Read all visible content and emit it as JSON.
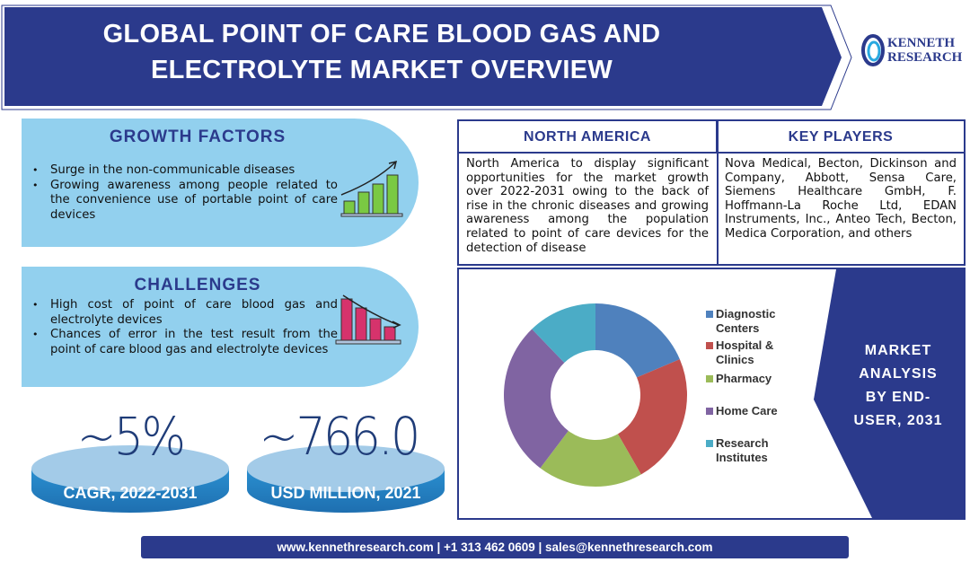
{
  "header": {
    "title_line1": "GLOBAL POINT OF CARE BLOOD GAS AND",
    "title_line2": "ELECTROLYTE MARKET OVERVIEW",
    "logo_line1": "KENNETH",
    "logo_line2": "RESEARCH"
  },
  "growth": {
    "title": "GROWTH FACTORS",
    "items": [
      "Surge in the non-communicable diseases",
      "Growing awareness among people related to the convenience use of portable point of care devices"
    ]
  },
  "challenges": {
    "title": "CHALLENGES",
    "items": [
      "High cost of point of care blood gas and electrolyte devices",
      "Chances of error in the test result from the point of care blood gas and electrolyte devices"
    ]
  },
  "stats": [
    {
      "value": "~5%",
      "label": "CAGR, 2022-2031"
    },
    {
      "value": "~766.0",
      "label": "USD MILLION, 2021"
    }
  ],
  "north_america": {
    "title": "NORTH AMERICA",
    "text": "North America to display significant opportunities for the market growth over 2022-2031 owing to the back of rise in the chronic diseases and growing awareness among the population related to point of care devices for the detection of disease"
  },
  "key_players": {
    "title": "KEY PLAYERS",
    "text": "Nova Medical, Becton, Dickinson and Company, Abbott, Sensa Care, Siemens Healthcare GmbH, F. Hoffmann-La Roche Ltd, EDAN Instruments, Inc., Anteo Tech, Becton, Medica Corporation, and others"
  },
  "market_analysis": {
    "line1": "MARKET",
    "line2": "ANALYSIS",
    "line3": "BY END-",
    "line4": "USER, 2031"
  },
  "chart_data": {
    "type": "pie",
    "donut": true,
    "categories": [
      "Diagnostic Centers",
      "Hospital & Clinics",
      "Pharmacy",
      "Home Care",
      "Research Institutes"
    ],
    "legend_lines": [
      [
        "Diagnostic",
        "Centers"
      ],
      [
        "Hospital &",
        "Clinics"
      ],
      [
        "Pharmacy"
      ],
      [
        "Home Care"
      ],
      [
        "Research",
        "Institutes"
      ]
    ],
    "values": [
      18.6,
      23.1,
      18.6,
      27.5,
      12.2
    ],
    "colors": [
      "#4f81bd",
      "#c0504d",
      "#9bbb59",
      "#8064a2",
      "#4bacc6"
    ],
    "legend": "right"
  },
  "footer": {
    "text": "www.kennethresearch.com | +1 313 462 0609 | sales@kennethresearch.com"
  },
  "colors": {
    "navy": "#2b3a8c",
    "light_blue": "#92d0ee",
    "green_bars": "#7ac943",
    "red_bars": "#d6336c"
  }
}
